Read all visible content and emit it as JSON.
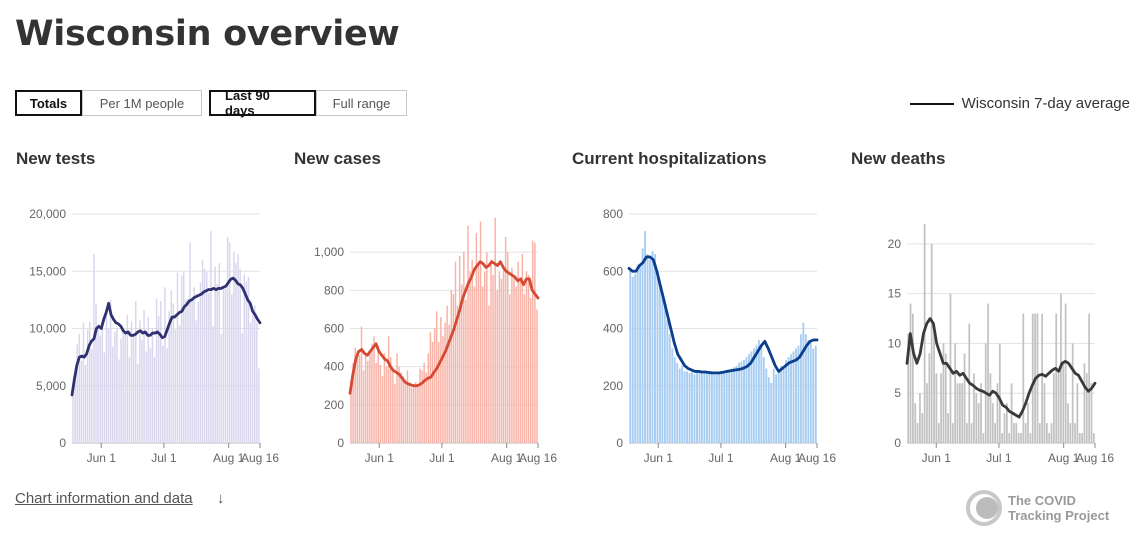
{
  "page": {
    "title": "Wisconsin overview"
  },
  "toggles": {
    "metric": [
      {
        "label": "Totals",
        "active": true
      },
      {
        "label": "Per 1M people",
        "active": false
      }
    ],
    "range": [
      {
        "label": "Last 90 days",
        "active": true
      },
      {
        "label": "Full range",
        "active": false
      }
    ]
  },
  "legend": {
    "label": "Wisconsin 7-day average",
    "color": "#111111"
  },
  "footer": {
    "link_label": "Chart information and data",
    "arrow": "↓"
  },
  "logo": {
    "line1": "The COVID",
    "line2": "Tracking Project"
  },
  "chart_data": [
    {
      "type": "bar",
      "title": "New tests",
      "bar_color": "#d9d6ee",
      "line_color": "#2f3171",
      "ylim": [
        0,
        20000
      ],
      "y_ticks": [
        0,
        5000,
        10000,
        15000,
        20000
      ],
      "y_tick_labels": [
        "0",
        "5,000",
        "10,000",
        "15,000",
        "20,000"
      ],
      "x_range": [
        "2020-05-18",
        "2020-08-16"
      ],
      "x_ticks": [
        {
          "label": "Jun 1",
          "date": "2020-06-01"
        },
        {
          "label": "Jul 1",
          "date": "2020-07-01"
        },
        {
          "label": "Aug 1",
          "date": "2020-08-01"
        },
        {
          "label": "Aug 16",
          "date": "2020-08-16"
        }
      ],
      "grid": true,
      "values": [
        4500,
        6000,
        8600,
        9500,
        7200,
        10500,
        6800,
        9900,
        10600,
        8200,
        16500,
        12200,
        10000,
        9400,
        10400,
        7900,
        11200,
        10000,
        12500,
        8400,
        9700,
        10100,
        7300,
        9100,
        9800,
        9600,
        11200,
        7500,
        10600,
        9500,
        12400,
        6900,
        10700,
        9000,
        11600,
        8000,
        11000,
        8300,
        10000,
        7500,
        12600,
        11100,
        12400,
        8500,
        13600,
        8300,
        11500,
        13300,
        12200,
        9900,
        14900,
        10300,
        14600,
        14900,
        12500,
        12600,
        17500,
        12500,
        13600,
        10700,
        12300,
        14000,
        16000,
        15200,
        14900,
        13100,
        18500,
        10200,
        15400,
        13900,
        15700,
        9500,
        13500,
        13500,
        18000,
        17500,
        13000,
        16700,
        15700,
        16500,
        15200,
        9600,
        14700,
        14100,
        14500,
        10500,
        11200,
        12000,
        10500,
        6500
      ],
      "average": [
        4200,
        5600,
        6800,
        7500,
        7600,
        7500,
        7800,
        8500,
        8900,
        9100,
        10000,
        10200,
        10000,
        10800,
        11400,
        12200,
        11200,
        10800,
        10500,
        10400,
        10200,
        9800,
        9600,
        9700,
        9400,
        9400,
        9500,
        9700,
        9800,
        9600,
        9700,
        9400,
        9400,
        9600,
        9600,
        9700,
        9500,
        9200,
        9300,
        9900,
        10500,
        11000,
        11000,
        11200,
        11400,
        11500,
        11900,
        12100,
        12400,
        12500,
        12700,
        12800,
        12900,
        13000,
        13200,
        13300,
        13400,
        13400,
        13500,
        13400,
        13500,
        13500,
        13600,
        13700,
        14000,
        14300,
        14400,
        14200,
        13900,
        13800,
        13500,
        13000,
        12500,
        12200,
        11500,
        11200,
        10800,
        10500
      ]
    },
    {
      "type": "bar",
      "title": "New cases",
      "bar_color": "#f8b3a8",
      "line_color": "#d54a33",
      "ylim": [
        0,
        1200
      ],
      "y_ticks": [
        0,
        200,
        400,
        600,
        800,
        1000
      ],
      "y_tick_labels": [
        "0",
        "200",
        "400",
        "600",
        "800",
        "1,000"
      ],
      "x_range": [
        "2020-05-18",
        "2020-08-16"
      ],
      "x_ticks": [
        {
          "label": "Jun 1",
          "date": "2020-06-01"
        },
        {
          "label": "Jul 1",
          "date": "2020-07-01"
        },
        {
          "label": "Aug 1",
          "date": "2020-08-01"
        },
        {
          "label": "Aug 16",
          "date": "2020-08-16"
        }
      ],
      "grid": true,
      "values": [
        330,
        420,
        500,
        480,
        460,
        610,
        380,
        460,
        430,
        480,
        520,
        560,
        420,
        510,
        410,
        350,
        470,
        400,
        560,
        450,
        380,
        310,
        470,
        400,
        370,
        350,
        330,
        380,
        320,
        290,
        310,
        320,
        300,
        390,
        380,
        420,
        370,
        470,
        580,
        530,
        600,
        690,
        530,
        660,
        560,
        630,
        720,
        620,
        800,
        780,
        950,
        720,
        980,
        830,
        1000,
        750,
        1140,
        900,
        960,
        820,
        1100,
        940,
        1160,
        820,
        900,
        1000,
        720,
        960,
        880,
        1180,
        800,
        900,
        860,
        930,
        1080,
        1000,
        780,
        920,
        880,
        820,
        950,
        860,
        990,
        780,
        900,
        880,
        760,
        1060,
        1050,
        700
      ],
      "average": [
        260,
        360,
        440,
        480,
        490,
        470,
        460,
        480,
        500,
        520,
        480,
        460,
        440,
        430,
        400,
        380,
        370,
        360,
        340,
        320,
        310,
        305,
        300,
        300,
        305,
        315,
        330,
        340,
        345,
        370,
        390,
        420,
        450,
        480,
        520,
        560,
        600,
        650,
        700,
        760,
        800,
        840,
        870,
        910,
        930,
        950,
        940,
        920,
        930,
        950,
        940,
        930,
        950,
        920,
        900,
        890,
        880,
        870,
        850,
        860,
        830,
        860,
        860,
        800,
        780,
        760
      ]
    },
    {
      "type": "bar",
      "title": "Current hospitalizations",
      "bar_color": "#a7cdf2",
      "line_color": "#0b3e8c",
      "ylim": [
        0,
        800
      ],
      "y_ticks": [
        0,
        200,
        400,
        600,
        800
      ],
      "y_tick_labels": [
        "0",
        "200",
        "400",
        "600",
        "800"
      ],
      "x_range": [
        "2020-05-18",
        "2020-08-16"
      ],
      "x_ticks": [
        {
          "label": "Jun 1",
          "date": "2020-06-01"
        },
        {
          "label": "Jul 1",
          "date": "2020-07-01"
        },
        {
          "label": "Aug 1",
          "date": "2020-08-01"
        },
        {
          "label": "Aug 16",
          "date": "2020-08-16"
        }
      ],
      "grid": true,
      "values": [
        600,
        580,
        590,
        620,
        620,
        680,
        740,
        660,
        640,
        670,
        660,
        600,
        560,
        520,
        480,
        430,
        380,
        330,
        300,
        280,
        260,
        270,
        250,
        250,
        245,
        250,
        240,
        245,
        250,
        250,
        245,
        248,
        245,
        242,
        240,
        240,
        245,
        250,
        250,
        255,
        250,
        260,
        265,
        270,
        280,
        285,
        290,
        300,
        310,
        320,
        330,
        340,
        360,
        340,
        300,
        260,
        230,
        210,
        260,
        240,
        250,
        270,
        260,
        290,
        300,
        310,
        320,
        330,
        340,
        380,
        420,
        380,
        360,
        350,
        330,
        340
      ],
      "average": [
        610,
        600,
        600,
        620,
        630,
        650,
        650,
        640,
        600,
        550,
        500,
        450,
        400,
        350,
        310,
        290,
        270,
        260,
        255,
        250,
        250,
        248,
        248,
        246,
        245,
        245,
        245,
        247,
        250,
        252,
        254,
        256,
        258,
        262,
        268,
        280,
        300,
        320,
        340,
        355,
        330,
        300,
        270,
        250,
        260,
        270,
        280,
        285,
        290,
        300,
        320,
        340,
        355,
        360,
        360
      ]
    },
    {
      "type": "bar",
      "title": "New deaths",
      "bar_color": "#c2c2c2",
      "line_color": "#3a3a3a",
      "ylim": [
        0,
        23
      ],
      "y_ticks": [
        0,
        5,
        10,
        15,
        20
      ],
      "y_tick_labels": [
        "0",
        "5",
        "10",
        "15",
        "20"
      ],
      "x_range": [
        "2020-05-18",
        "2020-08-16"
      ],
      "x_ticks": [
        {
          "label": "Jun 1",
          "date": "2020-06-01"
        },
        {
          "label": "Jul 1",
          "date": "2020-07-01"
        },
        {
          "label": "Aug 1",
          "date": "2020-08-01"
        },
        {
          "label": "Aug 16",
          "date": "2020-08-16"
        }
      ],
      "grid": true,
      "values": [
        11,
        14,
        13,
        4,
        2,
        5,
        3,
        22,
        6,
        9,
        20,
        12,
        7,
        2,
        7,
        10,
        9,
        3,
        15,
        2,
        10,
        6,
        6,
        6,
        9,
        2,
        12,
        2,
        7,
        5,
        4,
        6,
        1,
        10,
        14,
        7,
        4,
        2,
        6,
        10,
        1,
        3,
        4,
        1,
        6,
        2,
        2,
        1,
        1,
        13,
        2,
        4,
        1,
        13,
        13,
        13,
        2,
        13,
        6,
        2,
        1,
        2,
        7,
        13,
        7,
        15,
        8,
        14,
        4,
        2,
        10,
        2,
        6,
        1,
        1,
        8,
        7,
        13,
        6,
        1
      ],
      "average": [
        8,
        11,
        9,
        8,
        9,
        11,
        12,
        12.5,
        12,
        10,
        9,
        8,
        8,
        7.5,
        7,
        7.2,
        6.8,
        7,
        6.5,
        6,
        5.8,
        5.5,
        5.3,
        5.2,
        5,
        4.8,
        5.2,
        5,
        4.5,
        3.8,
        3.6,
        3.2,
        3,
        2.8,
        2.6,
        3.2,
        4,
        5,
        5.8,
        6.5,
        6.8,
        6.9,
        6.7,
        7,
        7.3,
        7.5,
        7.2,
        8,
        8.2,
        8,
        7.5,
        7,
        6.8,
        6.2,
        5.6,
        5.2,
        5.5,
        6
      ]
    }
  ]
}
